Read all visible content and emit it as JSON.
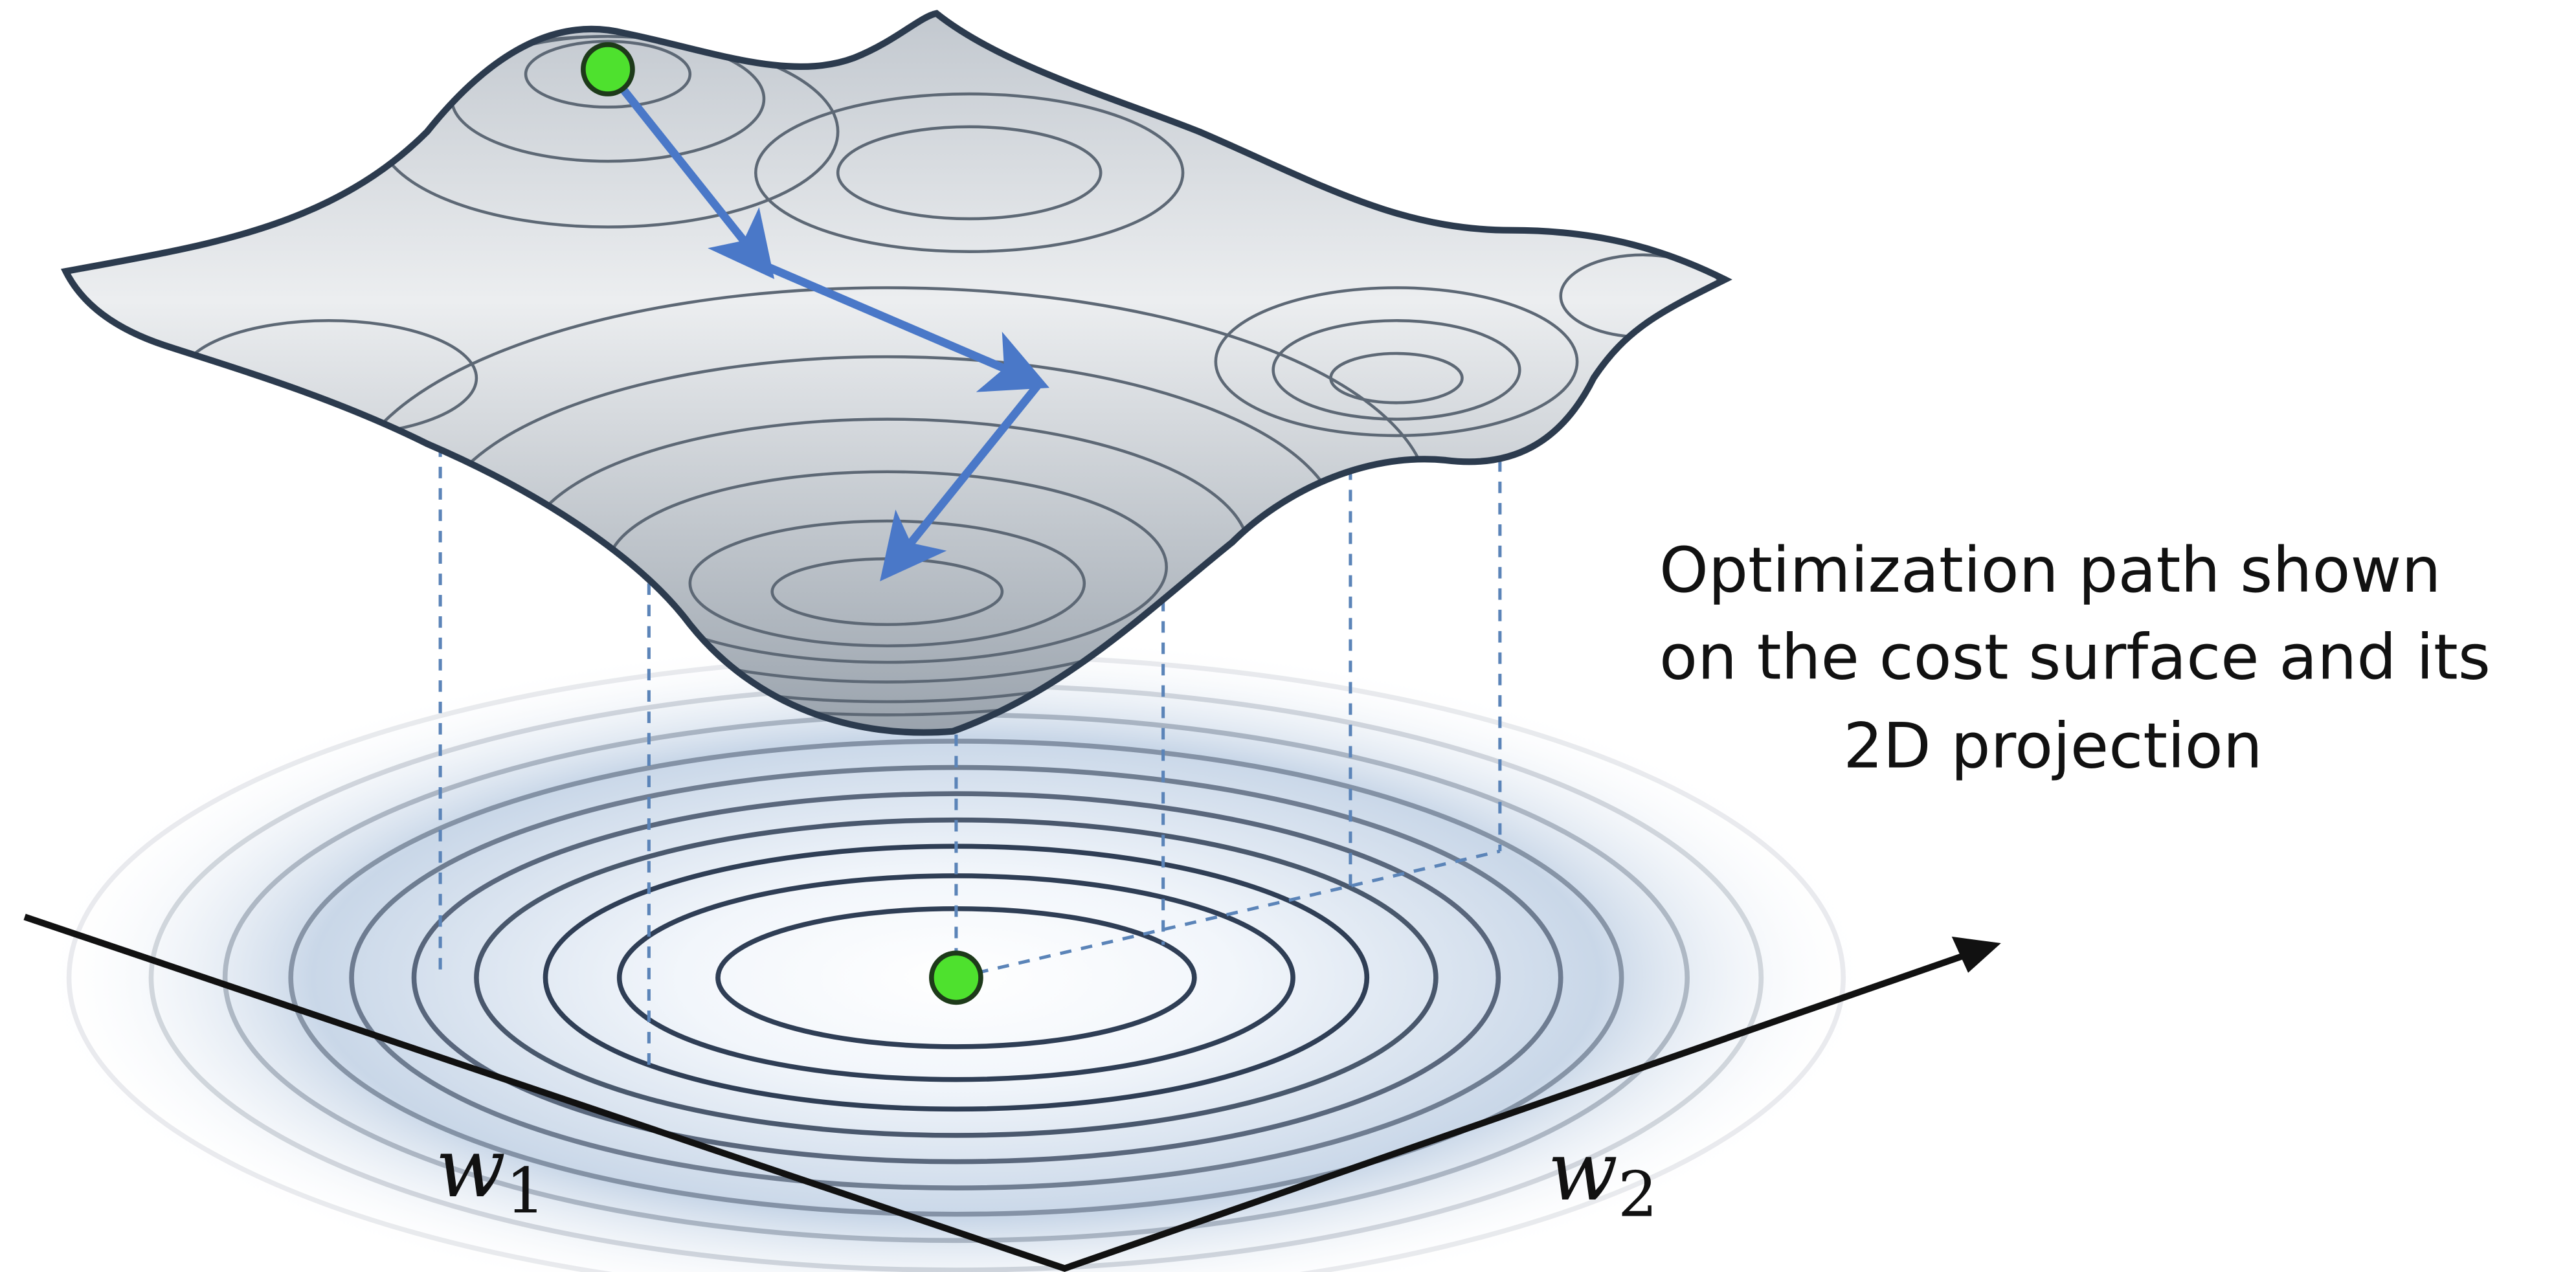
{
  "caption": {
    "lines": [
      "Optimization path shown",
      "on the cost surface and its",
      "2D projection"
    ]
  },
  "axes": {
    "w1": {
      "label": "w",
      "subscript": "1"
    },
    "w2": {
      "label": "w",
      "subscript": "2"
    }
  }
}
